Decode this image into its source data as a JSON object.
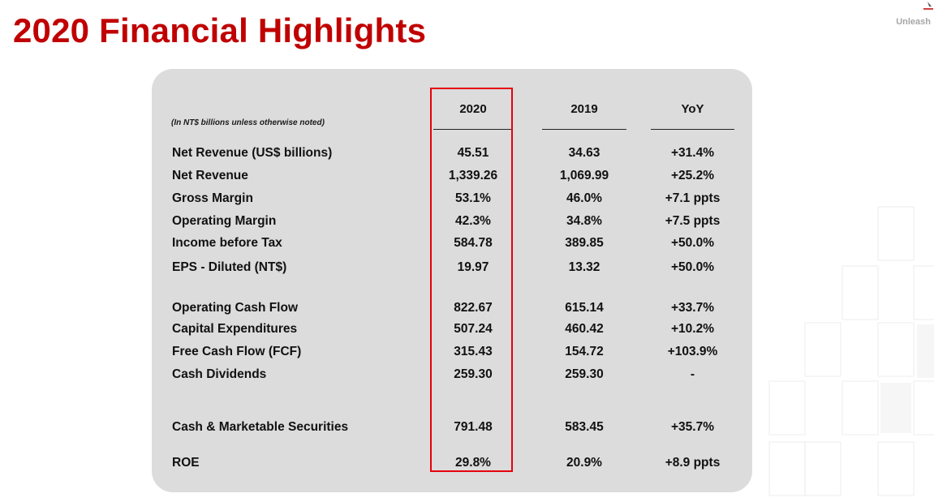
{
  "page_title": "2020 Financial Highlights",
  "brand_text": "Unleash",
  "table": {
    "note": "(In NT$ billions unless otherwise noted)",
    "headers": [
      "2020",
      "2019",
      "YoY"
    ],
    "rows": [
      {
        "label": "Net Revenue (US$ billions)",
        "v2020": "45.51",
        "v2019": "34.63",
        "yoy": "+31.4%"
      },
      {
        "label": "Net Revenue",
        "v2020": "1,339.26",
        "v2019": "1,069.99",
        "yoy": "+25.2%"
      },
      {
        "label": "Gross Margin",
        "v2020": "53.1%",
        "v2019": "46.0%",
        "yoy": "+7.1 ppts"
      },
      {
        "label": "Operating Margin",
        "v2020": "42.3%",
        "v2019": "34.8%",
        "yoy": "+7.5 ppts"
      },
      {
        "label": "Income before Tax",
        "v2020": "584.78",
        "v2019": "389.85",
        "yoy": "+50.0%"
      },
      {
        "label": "EPS - Diluted (NT$)",
        "v2020": "19.97",
        "v2019": "13.32",
        "yoy": "+50.0%"
      },
      {
        "label": "Operating Cash Flow",
        "v2020": "822.67",
        "v2019": "615.14",
        "yoy": "+33.7%"
      },
      {
        "label": "Capital Expenditures",
        "v2020": "507.24",
        "v2019": "460.42",
        "yoy": "+10.2%"
      },
      {
        "label": "Free Cash Flow (FCF)",
        "v2020": "315.43",
        "v2019": "154.72",
        "yoy": "+103.9%"
      },
      {
        "label": "Cash Dividends",
        "v2020": "259.30",
        "v2019": "259.30",
        "yoy": "-"
      },
      {
        "label": "Cash & Marketable Securities",
        "v2020": "791.48",
        "v2019": "583.45",
        "yoy": "+35.7%"
      },
      {
        "label": "ROE",
        "v2020": "29.8%",
        "v2019": "20.9%",
        "yoy": "+8.9 ppts"
      }
    ]
  },
  "colors": {
    "title": "#c00000",
    "highlight_box": "#e8000b",
    "panel": "#dcdcdc"
  }
}
